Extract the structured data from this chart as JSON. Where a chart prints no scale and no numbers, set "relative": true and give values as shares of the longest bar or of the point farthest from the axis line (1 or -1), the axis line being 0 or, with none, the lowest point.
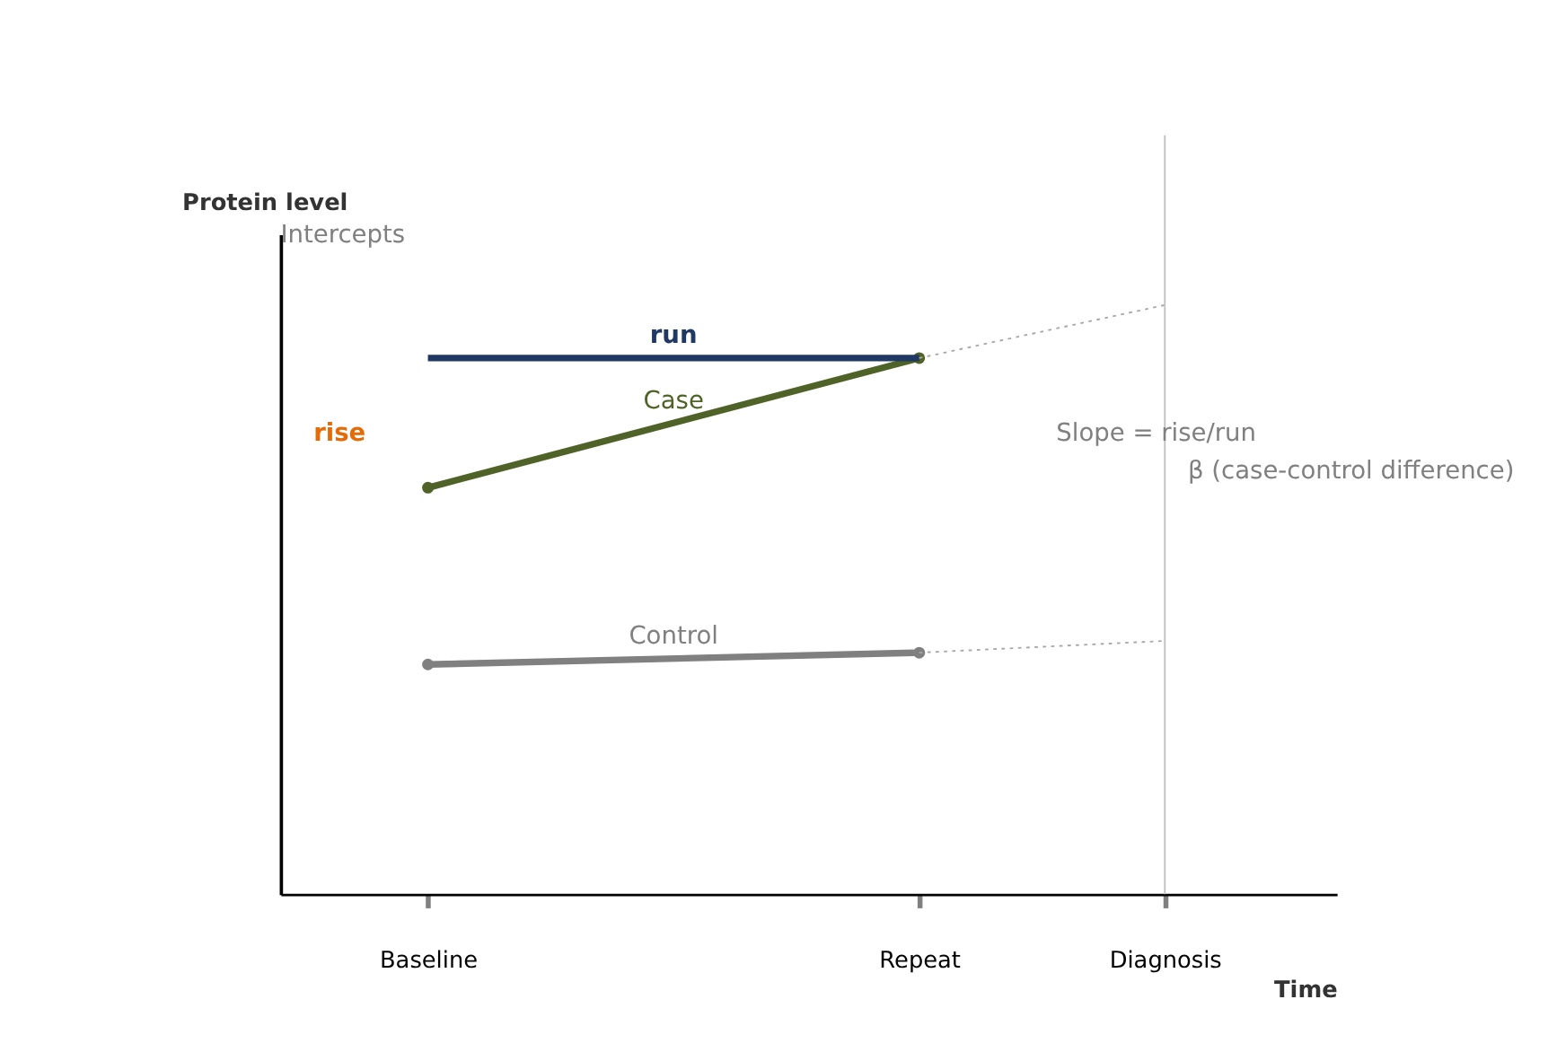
{
  "chart_data": {
    "type": "line",
    "relative": true,
    "xlabel": "Time",
    "ylabel": "Protein level",
    "categories": [
      "Baseline",
      null,
      "Repeat",
      "Diagnosis"
    ],
    "series": [
      {
        "name": "Case",
        "color": "#4f6228",
        "values": [
          0.69,
          null,
          0.91,
          null
        ],
        "marker": "circle",
        "line_style": "solid"
      },
      {
        "name": "Control",
        "color": "#808080",
        "values": [
          0.39,
          null,
          0.41,
          null
        ],
        "marker": "circle",
        "line_style": "solid"
      },
      {
        "name": "run",
        "color": "#1f3864",
        "values": [
          0.91,
          null,
          0.91,
          null
        ],
        "marker": "none",
        "line_style": "solid"
      },
      {
        "color": "#a6a6a6",
        "values": [
          null,
          null,
          0.91,
          1.0
        ],
        "marker": "none",
        "line_style": "dotted"
      },
      {
        "color": "#a6a6a6",
        "values": [
          null,
          null,
          0.41,
          0.43
        ],
        "marker": "none",
        "line_style": "dotted"
      }
    ],
    "ref_lines": [
      {
        "axis": "x",
        "value": "Diagnosis",
        "color": "#c0c0c0"
      }
    ],
    "annotations": [
      "rise",
      "Slope = rise/run",
      {
        "text": "β (case-control difference)",
        "x": "Diagnosis",
        "y": 0.72
      },
      "Intercepts"
    ]
  }
}
